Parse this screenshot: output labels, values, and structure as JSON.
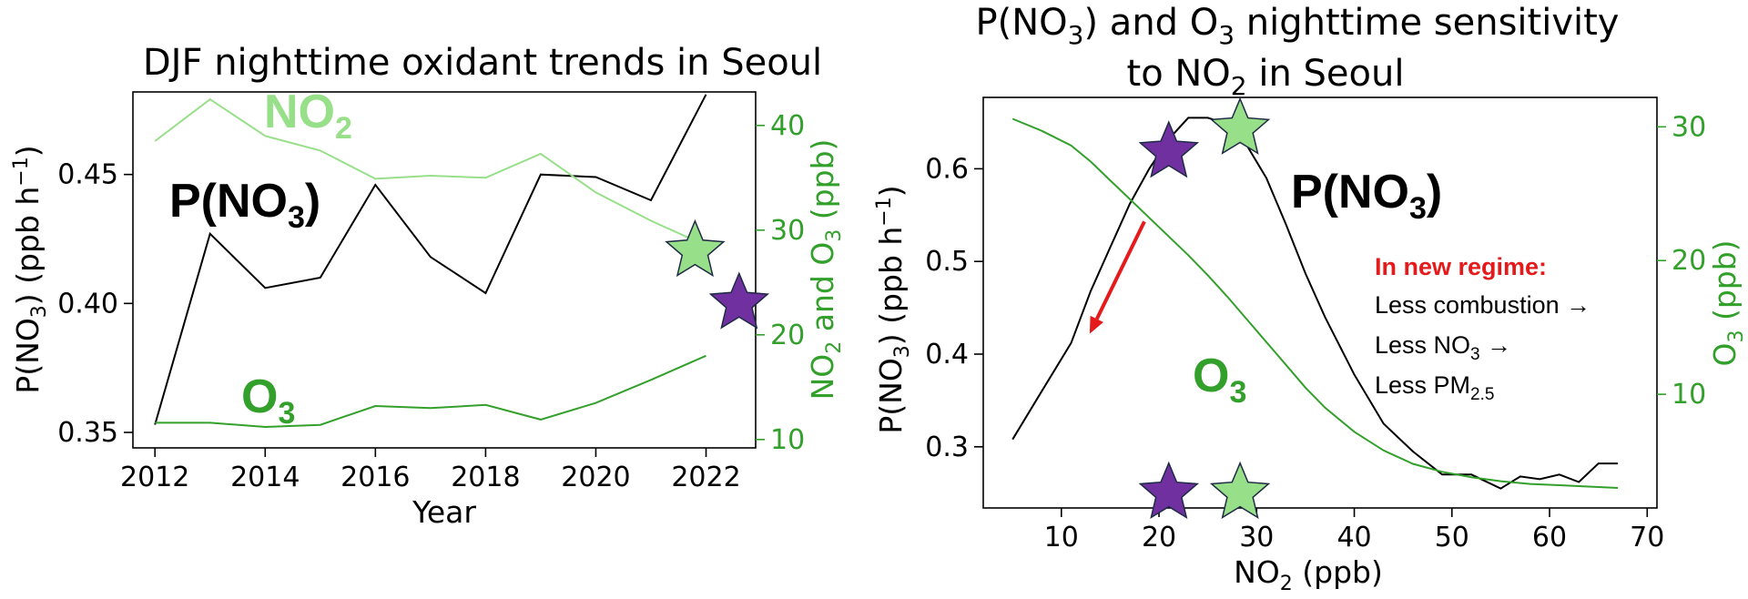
{
  "colors": {
    "dark_green": "#33a02c",
    "light_green": "#98df8a",
    "purple": "#7030a0",
    "red": "#e41a1c",
    "black": "#000000"
  },
  "chart_data": [
    {
      "type": "line",
      "title": "DJF nighttime oxidant trends in Seoul",
      "xlabel": "Year",
      "ylabel": {
        "main": "P(NO",
        "sub": "3",
        "tail": ") (ppb h",
        "sup": "−1",
        "end": ")"
      },
      "ylabel_right": {
        "a": "NO",
        "b": "2",
        "c": " and O",
        "d": "3",
        "e": " (ppb)"
      },
      "xlim": [
        2011.6,
        2022.9
      ],
      "ylim": [
        0.344,
        0.482
      ],
      "ylim_right": [
        9.2,
        43.2
      ],
      "xticks": [
        2012,
        2014,
        2016,
        2018,
        2020,
        2022
      ],
      "xtick_labels": [
        "2012",
        "2014",
        "2016",
        "2018",
        "2020",
        "2022"
      ],
      "yticks": [
        0.35,
        0.4,
        0.45
      ],
      "ytick_labels": [
        "0.35",
        "0.40",
        "0.45"
      ],
      "yticks_right": [
        10,
        20,
        30,
        40
      ],
      "ytick_labels_right": [
        "10",
        "20",
        "30",
        "40"
      ],
      "series": [
        {
          "axis": "left",
          "color": "#000000",
          "x": [
            2012,
            2013,
            2014,
            2015,
            2016,
            2017,
            2018,
            2019,
            2020,
            2021,
            2022
          ],
          "y": [
            0.353,
            0.427,
            0.406,
            0.41,
            0.446,
            0.418,
            0.404,
            0.45,
            0.449,
            0.44,
            0.481
          ]
        },
        {
          "axis": "right",
          "color": "#98df8a",
          "x": [
            2012,
            2013,
            2014,
            2015,
            2016,
            2017,
            2018,
            2019,
            2020,
            2021,
            2021.8
          ],
          "y": [
            38.5,
            42.5,
            39.0,
            37.6,
            34.9,
            35.2,
            35.0,
            37.3,
            33.6,
            30.9,
            29.0
          ]
        },
        {
          "axis": "right",
          "color": "#33a02c",
          "x": [
            2012,
            2013,
            2014,
            2015,
            2016,
            2017,
            2018,
            2019,
            2020,
            2021,
            2022
          ],
          "y": [
            11.6,
            11.6,
            11.2,
            11.4,
            13.2,
            13.0,
            13.3,
            11.9,
            13.5,
            15.7,
            18.0
          ]
        }
      ],
      "labels": {
        "pno3": {
          "a": "P(NO",
          "b": "3",
          "c": ")"
        },
        "no2": {
          "a": "NO",
          "b": "2"
        },
        "o3": {
          "a": "O",
          "b": "3"
        }
      },
      "stars": [
        {
          "x": 2021.8,
          "axis": "right",
          "y": 28.0,
          "color": "#98df8a"
        },
        {
          "x": 2022.6,
          "axis": "left",
          "y": 0.4,
          "color": "#7030a0"
        }
      ]
    },
    {
      "type": "line",
      "title": {
        "line1a": "P(NO",
        "line1b": "3",
        "line1c": ") and O",
        "line1d": "3",
        "line1e": " nighttime sensitivity",
        "line2a": "to NO",
        "line2b": "2",
        "line2c": " in Seoul"
      },
      "xlabel": {
        "a": "NO",
        "b": "2",
        "c": " (ppb)"
      },
      "ylabel": {
        "main": "P(NO",
        "sub": "3",
        "tail": ") (ppb h",
        "sup": "−1",
        "end": ")"
      },
      "ylabel_right": {
        "a": "O",
        "b": "3",
        "c": " (ppb)"
      },
      "xlim": [
        2,
        71
      ],
      "ylim": [
        0.234,
        0.677
      ],
      "ylim_right": [
        1.5,
        32.2
      ],
      "xticks": [
        10,
        20,
        30,
        40,
        50,
        60,
        70
      ],
      "xtick_labels": [
        "10",
        "20",
        "30",
        "40",
        "50",
        "60",
        "70"
      ],
      "yticks": [
        0.3,
        0.4,
        0.5,
        0.6
      ],
      "ytick_labels": [
        "0.3",
        "0.4",
        "0.5",
        "0.6"
      ],
      "yticks_right": [
        10,
        20,
        30
      ],
      "ytick_labels_right": [
        "10",
        "20",
        "30"
      ],
      "series": [
        {
          "axis": "left",
          "color": "#000000",
          "x": [
            5,
            8,
            11,
            13,
            15,
            17,
            19,
            21,
            23,
            25,
            27,
            29,
            31,
            33,
            35,
            37,
            40,
            43,
            46,
            49,
            52,
            55,
            57,
            59,
            61,
            63,
            65,
            67
          ],
          "y": [
            0.308,
            0.36,
            0.412,
            0.468,
            0.515,
            0.562,
            0.6,
            0.632,
            0.655,
            0.655,
            0.648,
            0.625,
            0.59,
            0.54,
            0.487,
            0.44,
            0.378,
            0.325,
            0.295,
            0.27,
            0.27,
            0.255,
            0.268,
            0.265,
            0.27,
            0.262,
            0.282,
            0.282
          ]
        },
        {
          "axis": "right",
          "color": "#33a02c",
          "x": [
            5,
            8,
            11,
            13,
            15,
            17,
            19,
            21,
            23,
            25,
            27,
            29,
            31,
            33,
            35,
            37,
            40,
            43,
            46,
            49,
            52,
            55,
            58,
            61,
            64,
            67
          ],
          "y": [
            30.6,
            29.7,
            28.6,
            27.4,
            26.0,
            24.6,
            23.2,
            21.8,
            20.4,
            18.9,
            17.3,
            15.6,
            13.9,
            12.2,
            10.5,
            9.0,
            7.2,
            5.8,
            4.8,
            4.2,
            3.8,
            3.5,
            3.3,
            3.2,
            3.1,
            3.0
          ]
        }
      ],
      "labels": {
        "pno3": {
          "a": "P(NO",
          "b": "3",
          "c": ")"
        },
        "o3": {
          "a": "O",
          "b": "3"
        }
      },
      "annotation": {
        "heading": "In new regime:",
        "line1": "Less combustion →",
        "line2a": "Less NO",
        "line2b": "3",
        "line2c": " →",
        "line3a": "Less PM",
        "line3b": "2.5"
      },
      "stars": [
        {
          "x": 21,
          "axis": "left",
          "y": 0.618,
          "color": "#7030a0"
        },
        {
          "x": 28.3,
          "axis": "left",
          "y": 0.643,
          "color": "#98df8a"
        },
        {
          "x": 21,
          "axis": "left",
          "y": 0.25,
          "color": "#7030a0"
        },
        {
          "x": 28.3,
          "axis": "left",
          "y": 0.25,
          "color": "#98df8a"
        }
      ],
      "arrow": {
        "x_from": 18.5,
        "y_from": 0.543,
        "x_to": 12.9,
        "y_to": 0.422,
        "color": "#e41a1c"
      }
    }
  ]
}
